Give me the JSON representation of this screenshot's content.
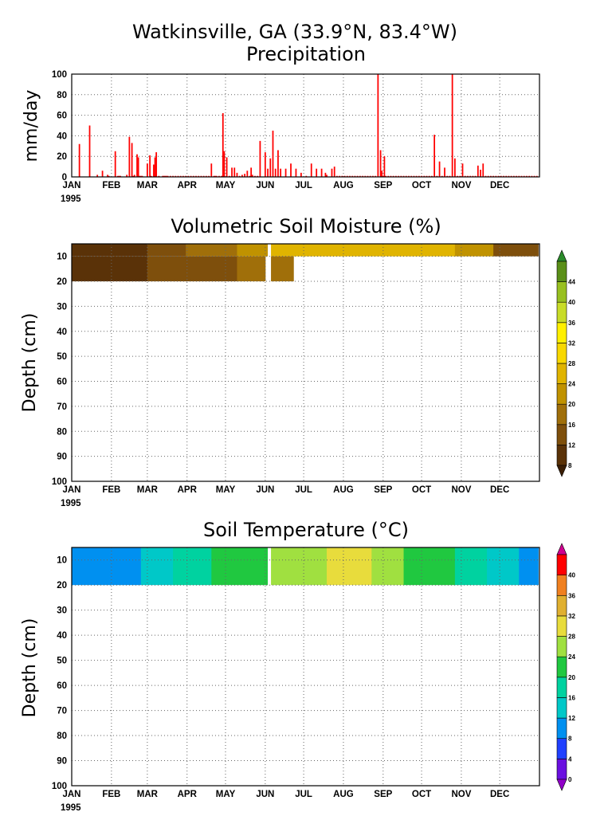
{
  "chart_data": [
    {
      "type": "bar",
      "title": "Watkinsville, GA  (33.9°N, 83.4°W)",
      "subtitle": "Precipitation",
      "ylabel": "mm/day",
      "year_label": "1995",
      "ylim": [
        0,
        100
      ],
      "yticks": [
        0,
        20,
        40,
        60,
        80,
        100
      ],
      "months": [
        "JAN",
        "FEB",
        "MAR",
        "APR",
        "MAY",
        "JUN",
        "JUL",
        "AUG",
        "SEP",
        "OCT",
        "NOV",
        "DEC"
      ],
      "grid": true,
      "bar_color": "#ff0000",
      "x": [
        7,
        15,
        21,
        25,
        29,
        30,
        35,
        37,
        38,
        39,
        44,
        46,
        48,
        49,
        50,
        52,
        53,
        54,
        55,
        56,
        60,
        62,
        63,
        65,
        66,
        67,
        69,
        72,
        73,
        74,
        75,
        76,
        78,
        80,
        82,
        84,
        86,
        88,
        90,
        92,
        94,
        96,
        98,
        100,
        102,
        104,
        106,
        108,
        110,
        112,
        113,
        114,
        116,
        118,
        119,
        120,
        122,
        124,
        126,
        128,
        130,
        132,
        134,
        136,
        138,
        140,
        141,
        142,
        144,
        146,
        148,
        152,
        154,
        156,
        158,
        160,
        162,
        164,
        168,
        172,
        176,
        180,
        184,
        188,
        192,
        196,
        199,
        200,
        204,
        206,
        208,
        210,
        212,
        214,
        216,
        218,
        220,
        222,
        224,
        226,
        228,
        230,
        232,
        234,
        236,
        238,
        240,
        242,
        243,
        244,
        245,
        246,
        248,
        250,
        252,
        254,
        256,
        258,
        260,
        262,
        264,
        266,
        268,
        270,
        272,
        274,
        276,
        278,
        280,
        282,
        284,
        286,
        288,
        290,
        292,
        294,
        296,
        298,
        300,
        302,
        304,
        306,
        308,
        310,
        312,
        314,
        316,
        318,
        320,
        322,
        324,
        326,
        328,
        330,
        332,
        334,
        336,
        338,
        340,
        342,
        344,
        346,
        348,
        350,
        352,
        354,
        356,
        358,
        360,
        362,
        364
      ],
      "values": [
        32,
        50,
        2,
        6,
        2,
        1,
        25,
        1,
        1,
        1,
        2,
        39,
        33,
        1,
        2,
        22,
        19,
        1,
        1,
        1,
        13,
        21,
        1,
        12,
        19,
        24,
        1,
        1,
        1,
        1,
        1,
        1,
        1,
        1,
        1,
        1,
        1,
        1,
        1,
        1,
        1,
        1,
        1,
        1,
        1,
        1,
        1,
        1,
        13,
        1,
        1,
        1,
        1,
        1,
        62,
        25,
        19,
        1,
        9,
        9,
        4,
        1,
        2,
        3,
        6,
        1,
        9,
        2,
        1,
        1,
        35,
        24,
        8,
        18,
        45,
        8,
        26,
        8,
        8,
        13,
        8,
        4,
        1,
        13,
        8,
        8,
        4,
        2,
        8,
        10,
        1,
        1,
        1,
        1,
        1,
        1,
        1,
        1,
        1,
        1,
        1,
        1,
        1,
        1,
        1,
        1,
        100,
        26,
        6,
        1,
        20,
        1,
        1,
        1,
        1,
        1,
        1,
        1,
        1,
        1,
        1,
        1,
        1,
        1,
        1,
        1,
        1,
        1,
        1,
        1,
        41,
        1,
        15,
        1,
        9,
        1,
        1,
        100,
        18,
        1,
        1,
        13,
        1,
        1,
        1,
        1,
        1,
        11,
        7,
        13,
        1,
        1,
        1,
        1,
        1,
        1,
        1,
        1,
        1,
        1,
        1,
        1,
        1,
        1,
        1,
        1,
        1,
        1,
        1,
        1,
        1
      ]
    },
    {
      "type": "heatmap",
      "title": "Volumetric Soil Moisture (%)",
      "ylabel": "Depth (cm)",
      "year_label": "1995",
      "ylim": [
        100,
        5
      ],
      "yticks": [
        10,
        20,
        30,
        40,
        50,
        60,
        70,
        80,
        90,
        100
      ],
      "months": [
        "JAN",
        "FEB",
        "MAR",
        "APR",
        "MAY",
        "JUN",
        "JUL",
        "AUG",
        "SEP",
        "OCT",
        "NOV",
        "DEC"
      ],
      "grid": true,
      "colorbar_levels": [
        8,
        12,
        16,
        20,
        24,
        28,
        32,
        36,
        40,
        44
      ],
      "colorbar_colors": [
        "#3a1e05",
        "#5a3208",
        "#7e4f0c",
        "#a06f0a",
        "#c09200",
        "#e0b400",
        "#f8d800",
        "#fff000",
        "#c8dc28",
        "#98c020",
        "#5a8f18",
        "#2a8a2a"
      ],
      "layers": [
        {
          "depth_top": 5,
          "depth_bottom": 10,
          "segments": [
            [
              1,
              12,
              9
            ],
            [
              12,
              35,
              8
            ],
            [
              35,
              60,
              10
            ],
            [
              60,
              90,
              13
            ],
            [
              90,
              130,
              17
            ],
            [
              130,
              150,
              21
            ],
            [
              150,
              154,
              22
            ],
            [
              156,
              200,
              26
            ],
            [
              200,
              260,
              27
            ],
            [
              260,
              300,
              24
            ],
            [
              300,
              330,
              20
            ],
            [
              330,
              365,
              13
            ]
          ]
        },
        {
          "depth_top": 10,
          "depth_bottom": 20,
          "segments": [
            [
              1,
              35,
              8
            ],
            [
              35,
              60,
              9
            ],
            [
              60,
              90,
              12
            ],
            [
              90,
              130,
              15
            ],
            [
              130,
              152,
              18
            ],
            [
              156,
              174,
              19
            ]
          ]
        }
      ],
      "gap_day": 154
    },
    {
      "type": "heatmap",
      "title": "Soil Temperature (°C)",
      "ylabel": "Depth (cm)",
      "year_label": "1995",
      "ylim": [
        100,
        5
      ],
      "yticks": [
        10,
        20,
        30,
        40,
        50,
        60,
        70,
        80,
        90,
        100
      ],
      "months": [
        "JAN",
        "FEB",
        "MAR",
        "APR",
        "MAY",
        "JUN",
        "JUL",
        "AUG",
        "SEP",
        "OCT",
        "NOV",
        "DEC"
      ],
      "grid": true,
      "colorbar_levels": [
        0,
        4,
        8,
        12,
        16,
        20,
        24,
        28,
        32,
        36,
        40
      ],
      "colorbar_colors": [
        "#9000c8",
        "#6a10e0",
        "#2040ff",
        "#0090f0",
        "#00c8c8",
        "#00d2a0",
        "#20c840",
        "#a0e040",
        "#e8dc3c",
        "#e0b030",
        "#f08020",
        "#ff0000",
        "#d00090"
      ],
      "layers": [
        {
          "depth_top": 5,
          "depth_bottom": 20,
          "segments": [
            [
              1,
              10,
              9
            ],
            [
              10,
              30,
              8
            ],
            [
              30,
              55,
              11
            ],
            [
              55,
              80,
              14
            ],
            [
              80,
              110,
              16
            ],
            [
              110,
              140,
              20
            ],
            [
              140,
              154,
              22
            ],
            [
              156,
              175,
              24
            ],
            [
              175,
              200,
              27
            ],
            [
              200,
              235,
              28
            ],
            [
              235,
              260,
              25
            ],
            [
              260,
              300,
              22
            ],
            [
              300,
              325,
              17
            ],
            [
              325,
              350,
              12
            ],
            [
              350,
              365,
              9
            ]
          ]
        }
      ],
      "gap_day": 154
    }
  ]
}
